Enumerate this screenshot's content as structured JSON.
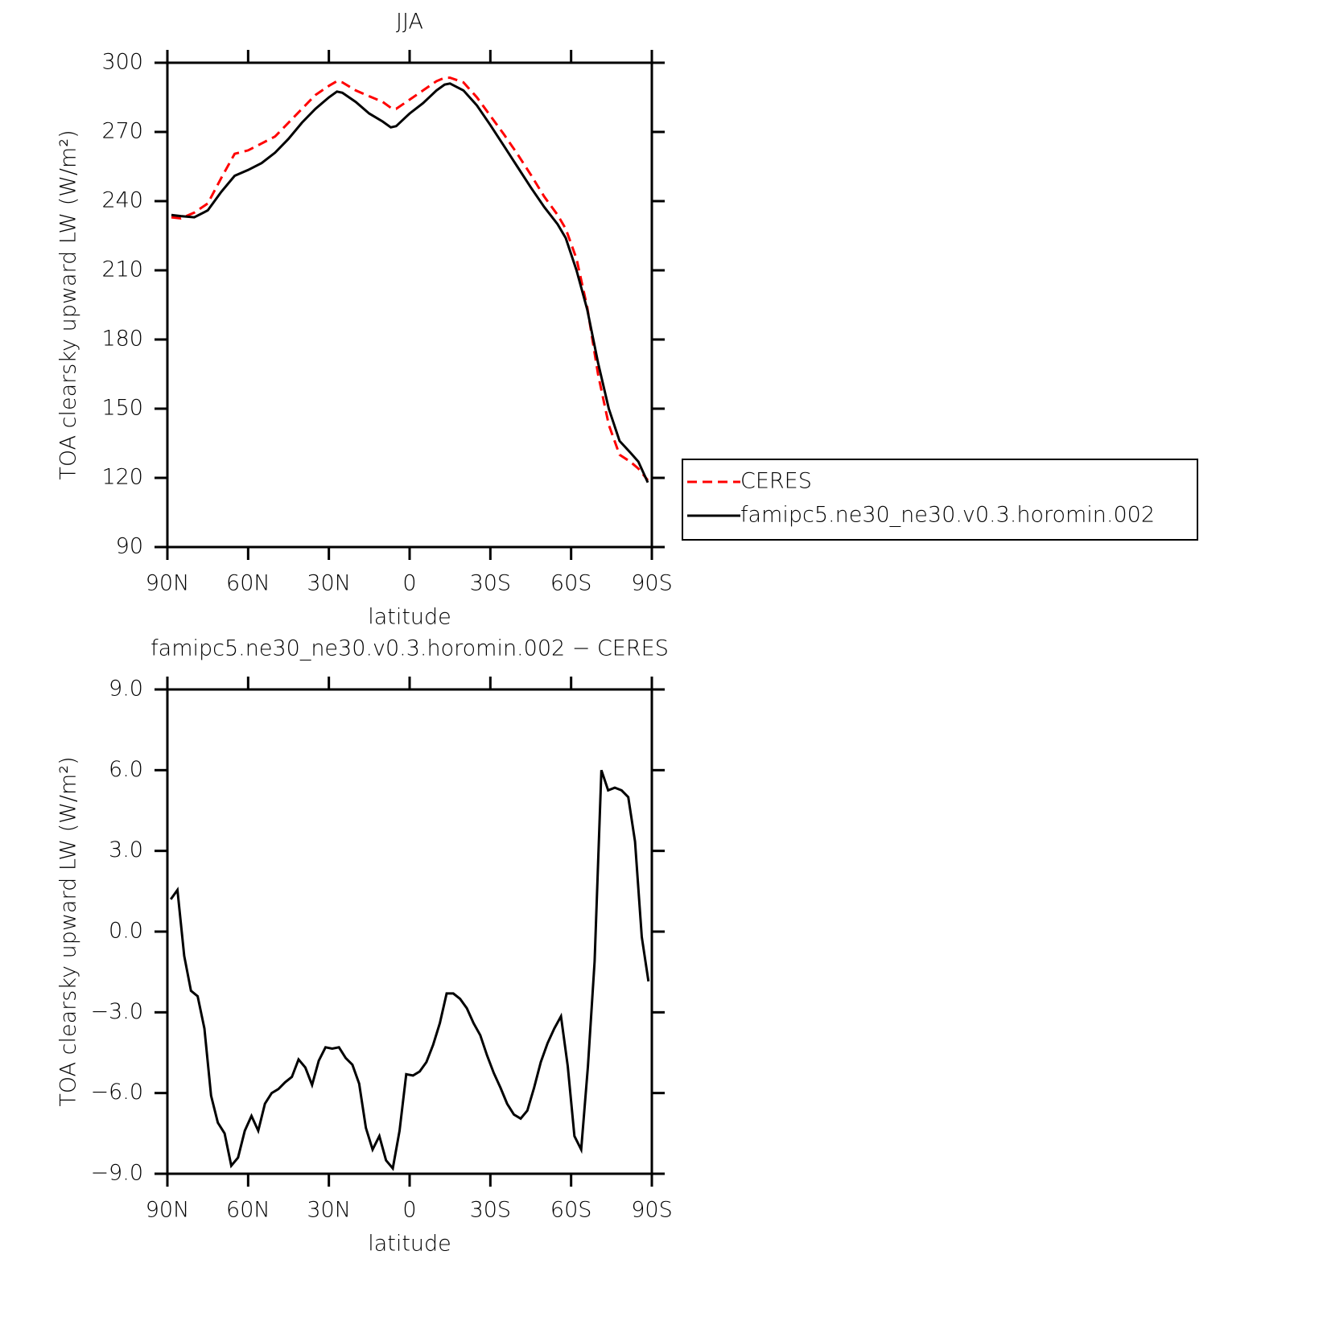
{
  "chart_data": [
    {
      "type": "line",
      "title": "JJA",
      "x_label": "latitude",
      "y_label": "TOA clearsky upward LW (W/m²)",
      "xlim": [
        90,
        -90
      ],
      "ylim": [
        90,
        300
      ],
      "xticks": [
        {
          "value": 90,
          "label": "90N"
        },
        {
          "value": 60,
          "label": "60N"
        },
        {
          "value": 30,
          "label": "30N"
        },
        0,
        {
          "value": -30,
          "label": "30S"
        },
        {
          "value": -60,
          "label": "60S"
        },
        {
          "value": -90,
          "label": "90S"
        }
      ],
      "yticks": [
        90,
        120,
        150,
        180,
        210,
        240,
        270,
        300
      ],
      "legend": "right",
      "x": [
        88.5,
        85,
        80,
        75,
        70,
        65,
        60,
        55,
        50,
        45,
        40,
        35,
        30,
        27,
        25,
        20,
        15,
        10,
        7,
        5,
        0,
        -5,
        -10,
        -13,
        -15,
        -20,
        -25,
        -30,
        -35,
        -40,
        -45,
        -50,
        -55,
        -58,
        -62,
        -66,
        -70,
        -74,
        -78,
        -82,
        -85,
        -88.5
      ],
      "series": [
        {
          "name": "CERES",
          "color": "#ff0000",
          "line_style": "dashed",
          "values": [
            233,
            232.5,
            235,
            239,
            250,
            260.5,
            262,
            265,
            268,
            274,
            280,
            286,
            290,
            292,
            291.5,
            288,
            285.5,
            283,
            280.5,
            280,
            284,
            288,
            292,
            293.5,
            293.5,
            291.5,
            285,
            277,
            269,
            260.5,
            251.5,
            242,
            234,
            228,
            215,
            194,
            165,
            143,
            130,
            127,
            124,
            119
          ]
        },
        {
          "name": "famipc5.ne30_ne30.v0.3.horomin.002",
          "color": "#000000",
          "line_style": "solid",
          "values": [
            234,
            233.5,
            233,
            236,
            244,
            251,
            253.5,
            256.5,
            261,
            267,
            274,
            280,
            285,
            287.5,
            287,
            283,
            278,
            274.5,
            272,
            272.5,
            278,
            282.5,
            288,
            290.5,
            291,
            288,
            281.5,
            273,
            264,
            255,
            246,
            237.5,
            230,
            224,
            210,
            193,
            170,
            150,
            136,
            131,
            127,
            118
          ]
        }
      ]
    },
    {
      "type": "line",
      "title": "famipc5.ne30_ne30.v0.3.horomin.002 − CERES",
      "x_label": "latitude",
      "y_label": "TOA clearsky upward LW (W/m²)",
      "xlim": [
        90,
        -90
      ],
      "ylim": [
        -9,
        9
      ],
      "xticks": [
        {
          "value": 90,
          "label": "90N"
        },
        {
          "value": 60,
          "label": "60N"
        },
        {
          "value": 30,
          "label": "30N"
        },
        0,
        {
          "value": -30,
          "label": "30S"
        },
        {
          "value": -60,
          "label": "60S"
        },
        {
          "value": -90,
          "label": "90S"
        }
      ],
      "yticks": [
        {
          "value": -9,
          "label": "−9.0"
        },
        {
          "value": -6,
          "label": "−6.0"
        },
        {
          "value": -3,
          "label": "−3.0"
        },
        {
          "value": 0,
          "label": "0.0"
        },
        {
          "value": 3,
          "label": "3.0"
        },
        {
          "value": 6,
          "label": "6.0"
        },
        {
          "value": 9,
          "label": "9.0"
        }
      ],
      "x": [
        88.75,
        86.25,
        83.75,
        81.25,
        78.75,
        76.25,
        73.75,
        71.25,
        68.75,
        66.25,
        63.75,
        61.25,
        58.75,
        56.25,
        53.75,
        51.25,
        48.75,
        46.25,
        43.75,
        41.25,
        38.75,
        36.25,
        33.75,
        31.25,
        28.75,
        26.25,
        23.75,
        21.25,
        18.75,
        16.25,
        13.75,
        11.25,
        8.75,
        6.25,
        3.75,
        1.25,
        -1.25,
        -3.75,
        -6.25,
        -8.75,
        -11.25,
        -13.75,
        -16.25,
        -18.75,
        -21.25,
        -23.75,
        -26.25,
        -28.75,
        -31.25,
        -33.75,
        -36.25,
        -38.75,
        -41.25,
        -43.75,
        -46.25,
        -48.75,
        -51.25,
        -53.75,
        -56.25,
        -58.75,
        -61.25,
        -63.75,
        -66.25,
        -68.75,
        -71.25,
        -73.75,
        -76.25,
        -78.75,
        -81.25,
        -83.75,
        -86.25,
        -88.75
      ],
      "series": [
        {
          "name": "famipc5.ne30_ne30.v0.3.horomin.002 − CERES",
          "color": "#000000",
          "line_style": "solid",
          "values": [
            1.2,
            1.55,
            -0.9,
            -2.2,
            -2.4,
            -3.6,
            -6.1,
            -7.1,
            -7.5,
            -8.7,
            -8.4,
            -7.4,
            -6.85,
            -7.4,
            -6.4,
            -6.0,
            -5.85,
            -5.6,
            -5.4,
            -4.75,
            -5.05,
            -5.7,
            -4.8,
            -4.3,
            -4.35,
            -4.3,
            -4.7,
            -4.95,
            -5.65,
            -7.3,
            -8.1,
            -7.6,
            -8.5,
            -8.8,
            -7.4,
            -5.3,
            -5.35,
            -5.2,
            -4.85,
            -4.2,
            -3.4,
            -2.3,
            -2.3,
            -2.5,
            -2.85,
            -3.4,
            -3.85,
            -4.6,
            -5.25,
            -5.8,
            -6.4,
            -6.8,
            -6.95,
            -6.65,
            -5.8,
            -4.85,
            -4.15,
            -3.6,
            -3.15,
            -5.0,
            -7.6,
            -8.1,
            -5.0,
            -1.1,
            6.0,
            5.25,
            5.35,
            5.25,
            5.0,
            3.35,
            -0.2,
            -1.85
          ]
        }
      ]
    }
  ]
}
